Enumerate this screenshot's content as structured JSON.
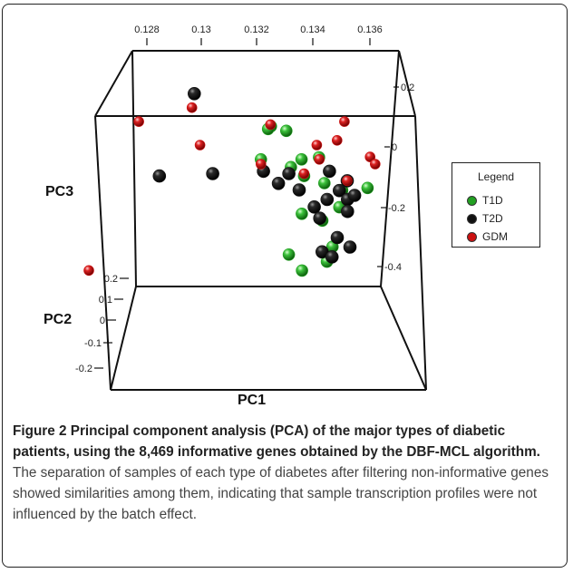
{
  "chart_data": {
    "type": "scatter",
    "dimensions": 3,
    "xlabel": "PC1",
    "ylabel": "PC2",
    "zlabel": "PC3",
    "pc1_ticks": [
      "0.128",
      "0.13",
      "0.132",
      "0.134",
      "0.136"
    ],
    "pc3_ticks": [
      "0.2",
      "0",
      "-0.2",
      "-0.4"
    ],
    "pc2_ticks": [
      "0.2",
      "0.1",
      "0",
      "-0.1",
      "-0.2"
    ],
    "legend_placement": "right",
    "series": [
      {
        "name": "T1D",
        "color": "#22a022",
        "points": [
          {
            "pc1": 0.1325,
            "pc2": 0.01,
            "pc3": 0.14
          },
          {
            "pc1": 0.1324,
            "pc2": 0.02,
            "pc3": 0.13
          },
          {
            "pc1": 0.1331,
            "pc2": 0.0,
            "pc3": 0.12
          },
          {
            "pc1": 0.1337,
            "pc2": 0.0,
            "pc3": 0.0
          },
          {
            "pc1": 0.1344,
            "pc2": 0.01,
            "pc3": 0.01
          },
          {
            "pc1": 0.1333,
            "pc2": 0.02,
            "pc3": -0.03
          },
          {
            "pc1": 0.1338,
            "pc2": 0.0,
            "pc3": -0.07
          },
          {
            "pc1": 0.1346,
            "pc2": 0.0,
            "pc3": -0.1
          },
          {
            "pc1": 0.1353,
            "pc2": 0.0,
            "pc3": -0.13
          },
          {
            "pc1": 0.1352,
            "pc2": 0.01,
            "pc3": -0.2
          },
          {
            "pc1": 0.1337,
            "pc2": -0.01,
            "pc3": -0.23
          },
          {
            "pc1": 0.1345,
            "pc2": -0.02,
            "pc3": -0.26
          },
          {
            "pc1": 0.1349,
            "pc2": -0.02,
            "pc3": -0.37
          },
          {
            "pc1": 0.1332,
            "pc2": 0.0,
            "pc3": -0.4
          },
          {
            "pc1": 0.1337,
            "pc2": -0.02,
            "pc3": -0.47
          },
          {
            "pc1": 0.1347,
            "pc2": 0.0,
            "pc3": -0.43
          },
          {
            "pc1": 0.1363,
            "pc2": 0.0,
            "pc3": -0.12
          },
          {
            "pc1": 0.1321,
            "pc2": 0.0,
            "pc3": 0.0
          }
        ]
      },
      {
        "name": "T2D",
        "color": "#111111",
        "points": [
          {
            "pc1": 0.1295,
            "pc2": 0.03,
            "pc3": 0.28
          },
          {
            "pc1": 0.1281,
            "pc2": 0.0,
            "pc3": -0.07
          },
          {
            "pc1": 0.1302,
            "pc2": 0.0,
            "pc3": -0.06
          },
          {
            "pc1": 0.1322,
            "pc2": 0.0,
            "pc3": -0.05
          },
          {
            "pc1": 0.1332,
            "pc2": 0.0,
            "pc3": -0.06
          },
          {
            "pc1": 0.1328,
            "pc2": 0.01,
            "pc3": -0.1
          },
          {
            "pc1": 0.1336,
            "pc2": -0.01,
            "pc3": -0.13
          },
          {
            "pc1": 0.1348,
            "pc2": 0.0,
            "pc3": -0.05
          },
          {
            "pc1": 0.1355,
            "pc2": 0.0,
            "pc3": -0.09
          },
          {
            "pc1": 0.1352,
            "pc2": 0.01,
            "pc3": -0.13
          },
          {
            "pc1": 0.1347,
            "pc2": -0.01,
            "pc3": -0.17
          },
          {
            "pc1": 0.1355,
            "pc2": -0.01,
            "pc3": -0.17
          },
          {
            "pc1": 0.1342,
            "pc2": 0.0,
            "pc3": -0.2
          },
          {
            "pc1": 0.1344,
            "pc2": -0.02,
            "pc3": -0.25
          },
          {
            "pc1": 0.1355,
            "pc2": -0.01,
            "pc3": -0.22
          },
          {
            "pc1": 0.1358,
            "pc2": 0.01,
            "pc3": -0.15
          },
          {
            "pc1": 0.1351,
            "pc2": -0.01,
            "pc3": -0.33
          },
          {
            "pc1": 0.1356,
            "pc2": -0.01,
            "pc3": -0.37
          },
          {
            "pc1": 0.1345,
            "pc2": -0.01,
            "pc3": -0.39
          },
          {
            "pc1": 0.1349,
            "pc2": 0.0,
            "pc3": -0.41
          }
        ]
      },
      {
        "name": "GDM",
        "color": "#cc1111",
        "points": [
          {
            "pc1": 0.1294,
            "pc2": 0.02,
            "pc3": 0.22
          },
          {
            "pc1": 0.1273,
            "pc2": 0.01,
            "pc3": 0.16
          },
          {
            "pc1": 0.1297,
            "pc2": 0.0,
            "pc3": 0.06
          },
          {
            "pc1": 0.1325,
            "pc2": 0.03,
            "pc3": 0.15
          },
          {
            "pc1": 0.1354,
            "pc2": 0.01,
            "pc3": 0.16
          },
          {
            "pc1": 0.1351,
            "pc2": 0.0,
            "pc3": 0.08
          },
          {
            "pc1": 0.1343,
            "pc2": 0.0,
            "pc3": 0.06
          },
          {
            "pc1": 0.1344,
            "pc2": 0.0,
            "pc3": 0.0
          },
          {
            "pc1": 0.1364,
            "pc2": 0.0,
            "pc3": 0.01
          },
          {
            "pc1": 0.1366,
            "pc2": 0.0,
            "pc3": -0.02
          },
          {
            "pc1": 0.1321,
            "pc2": 0.0,
            "pc3": -0.02
          },
          {
            "pc1": 0.1338,
            "pc2": 0.0,
            "pc3": -0.06
          },
          {
            "pc1": 0.1355,
            "pc2": 0.0,
            "pc3": -0.09
          },
          {
            "pc1": 0.1255,
            "pc2": 0.2,
            "pc3": -0.44
          }
        ]
      }
    ]
  },
  "legend": {
    "title": "Legend",
    "items": [
      {
        "label": "T1D",
        "color": "#22a022"
      },
      {
        "label": "T2D",
        "color": "#111111"
      },
      {
        "label": "GDM",
        "color": "#cc1111"
      }
    ]
  },
  "caption": {
    "bold": "Figure 2 Principal component analysis (PCA) of the major types of diabetic patients, using the 8,469 informative genes obtained by the DBF-MCL algorithm.",
    "text": " The separation of samples of each type of diabetes after filtering non-informative genes showed similarities among them, indicating that sample transcription profiles were not influenced by the batch effect."
  }
}
